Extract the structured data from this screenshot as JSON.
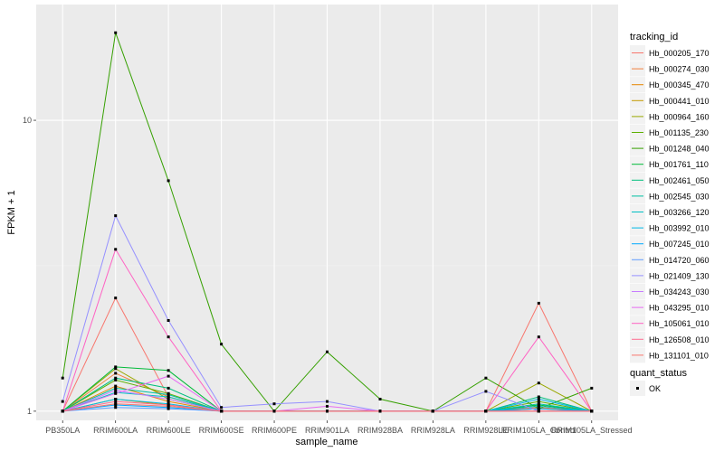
{
  "chart_data": {
    "type": "line",
    "xlabel": "sample_name",
    "ylabel": "FPKM + 1",
    "yscale": "log10",
    "ylim": [
      0.93,
      25
    ],
    "y_ticks": [
      1,
      10
    ],
    "y_tick_labels": [
      "1",
      "10"
    ],
    "grid": true,
    "legend_placement": "right",
    "categories": [
      "PB350LA",
      "RRIM600LA",
      "RRIM600LE",
      "RRIM600SE",
      "RRIM600PE",
      "RRIM901LA",
      "RRIM928BA",
      "RRIM928LA",
      "RRIM928LE",
      "RRIM105LA_Control",
      "RRIM105LA_Stressed"
    ],
    "x_tick_labels": [
      "PB350LA",
      "RRIM600LA",
      "RRIM600LE",
      "RRIM600SE",
      "RRIM600PE",
      "RRIM901LA",
      "RRIM928BA",
      "RRIM928LA",
      "RRIM928LE",
      "RRIM105LA_Control",
      "RRIM105LA_Stressed"
    ],
    "legend_title": "tracking_id",
    "series": [
      {
        "name": "Hb_000205_170",
        "color": "#F8766D",
        "values": [
          1,
          2.45,
          1.12,
          1,
          1,
          1,
          1,
          1,
          1,
          2.35,
          1
        ]
      },
      {
        "name": "Hb_000274_030",
        "color": "#F0803D",
        "values": [
          1,
          1.35,
          1.12,
          1,
          1,
          1,
          1,
          1,
          1,
          1.03,
          1
        ]
      },
      {
        "name": "Hb_000345_470",
        "color": "#E58700",
        "values": [
          1,
          1.22,
          1.08,
          1,
          1,
          1,
          1,
          1,
          1,
          1.02,
          1
        ]
      },
      {
        "name": "Hb_000441_010",
        "color": "#C49A00",
        "values": [
          1,
          1.1,
          1.05,
          1,
          1,
          1,
          1,
          1,
          1,
          1,
          1
        ]
      },
      {
        "name": "Hb_000964_160",
        "color": "#99A800",
        "values": [
          1,
          1.4,
          1.1,
          1,
          1,
          1,
          1,
          1,
          1,
          1.25,
          1
        ]
      },
      {
        "name": "Hb_001135_230",
        "color": "#5DB000",
        "values": [
          1,
          1.28,
          1.15,
          1,
          1,
          1,
          1,
          1,
          1,
          1.08,
          1
        ]
      },
      {
        "name": "Hb_001248_040",
        "color": "#35A000",
        "values": [
          1.3,
          20,
          6.2,
          1.7,
          1,
          1.6,
          1.1,
          1,
          1.3,
          1.02,
          1.2
        ]
      },
      {
        "name": "Hb_001761_110",
        "color": "#00BA38",
        "values": [
          1,
          1.42,
          1.38,
          1,
          1,
          1,
          1,
          1,
          1,
          1.05,
          1
        ]
      },
      {
        "name": "Hb_002461_050",
        "color": "#00BF7D",
        "values": [
          1,
          1.3,
          1.2,
          1,
          1,
          1,
          1,
          1,
          1,
          1.12,
          1
        ]
      },
      {
        "name": "Hb_002545_030",
        "color": "#00C1A3",
        "values": [
          1,
          1.2,
          1.14,
          1,
          1,
          1,
          1,
          1,
          1,
          1.06,
          1
        ]
      },
      {
        "name": "Hb_003266_120",
        "color": "#00BFC4",
        "values": [
          1,
          1.16,
          1.12,
          1,
          1,
          1,
          1,
          1,
          1,
          1.04,
          1
        ]
      },
      {
        "name": "Hb_003992_010",
        "color": "#00B8E7",
        "values": [
          1,
          1.1,
          1.06,
          1,
          1,
          1,
          1,
          1,
          1,
          1.1,
          1
        ]
      },
      {
        "name": "Hb_007245_010",
        "color": "#00A9FF",
        "values": [
          1,
          1.05,
          1.03,
          1,
          1,
          1,
          1,
          1,
          1,
          1.02,
          1
        ]
      },
      {
        "name": "Hb_014720_060",
        "color": "#619CFF",
        "values": [
          1,
          1.03,
          1.02,
          1,
          1,
          1,
          1,
          1,
          1,
          1,
          1
        ]
      },
      {
        "name": "Hb_021409_130",
        "color": "#9590FF",
        "values": [
          1.08,
          4.7,
          2.05,
          1.03,
          1.06,
          1.08,
          1,
          1,
          1.17,
          1,
          1
        ]
      },
      {
        "name": "Hb_034243_030",
        "color": "#C77CFF",
        "values": [
          1,
          1.18,
          1.1,
          1,
          1,
          1,
          1,
          1,
          1,
          1,
          1
        ]
      },
      {
        "name": "Hb_043295_010",
        "color": "#E76BF3",
        "values": [
          1,
          1.15,
          1.32,
          1,
          1,
          1.04,
          1,
          1,
          1,
          1,
          1
        ]
      },
      {
        "name": "Hb_105061_010",
        "color": "#FF61C3",
        "values": [
          1,
          3.6,
          1.8,
          1,
          1,
          1,
          1,
          1,
          1,
          1.8,
          1
        ]
      },
      {
        "name": "Hb_126508_010",
        "color": "#FF6C91",
        "values": [
          1,
          1.08,
          1.05,
          1,
          1,
          1,
          1,
          1,
          1,
          1,
          1
        ]
      },
      {
        "name": "Hb_131101_010",
        "color": "#F8766D",
        "values": [
          1,
          1.06,
          1.04,
          1,
          1,
          1,
          1,
          1,
          1,
          1,
          1
        ]
      }
    ],
    "point_legend_title": "quant_status",
    "point_legend_items": [
      {
        "label": "OK"
      }
    ]
  }
}
